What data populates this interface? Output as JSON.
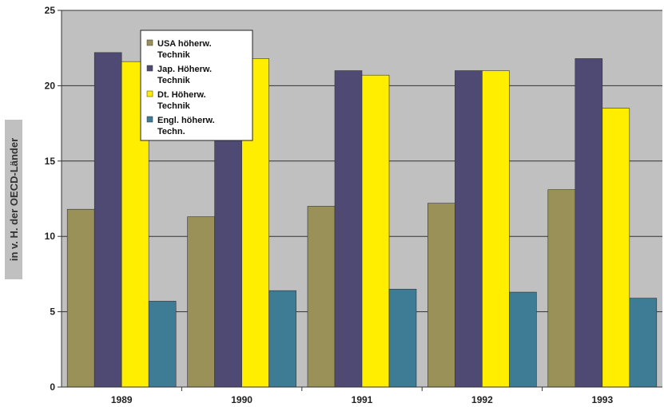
{
  "chart_data": {
    "type": "bar",
    "title": "",
    "xlabel": "",
    "ylabel": "in v. H. der OECD-Länder",
    "ylim": [
      0,
      25
    ],
    "yticks": [
      0,
      5,
      10,
      15,
      20,
      25
    ],
    "grid": true,
    "legend_position": "top-left",
    "categories": [
      "1989",
      "1990",
      "1991",
      "1992",
      "1993"
    ],
    "series": [
      {
        "name": "USA höherw. Technik",
        "name_lines": [
          "USA höherw.",
          "Technik"
        ],
        "color": "#999157",
        "values": [
          11.8,
          11.3,
          12.0,
          12.2,
          13.1
        ]
      },
      {
        "name": "Jap. Höherw. Technik",
        "name_lines": [
          "Jap. Höherw.",
          "Technik"
        ],
        "color": "#4f4a74",
        "values": [
          22.2,
          19.9,
          21.0,
          21.0,
          21.8
        ]
      },
      {
        "name": "Dt. Höherw. Technik",
        "name_lines": [
          "Dt. Höherw.",
          "Technik"
        ],
        "color": "#ffee00",
        "values": [
          21.6,
          21.8,
          20.7,
          21.0,
          18.5
        ]
      },
      {
        "name": "Engl. höherw. Techn.",
        "name_lines": [
          "Engl. höherw.",
          "Techn."
        ],
        "color": "#3e7b94",
        "values": [
          5.7,
          6.4,
          6.5,
          6.3,
          5.9
        ]
      }
    ],
    "colors": {
      "plot_background": "#c0c0c0",
      "gridline": "#333333"
    }
  }
}
